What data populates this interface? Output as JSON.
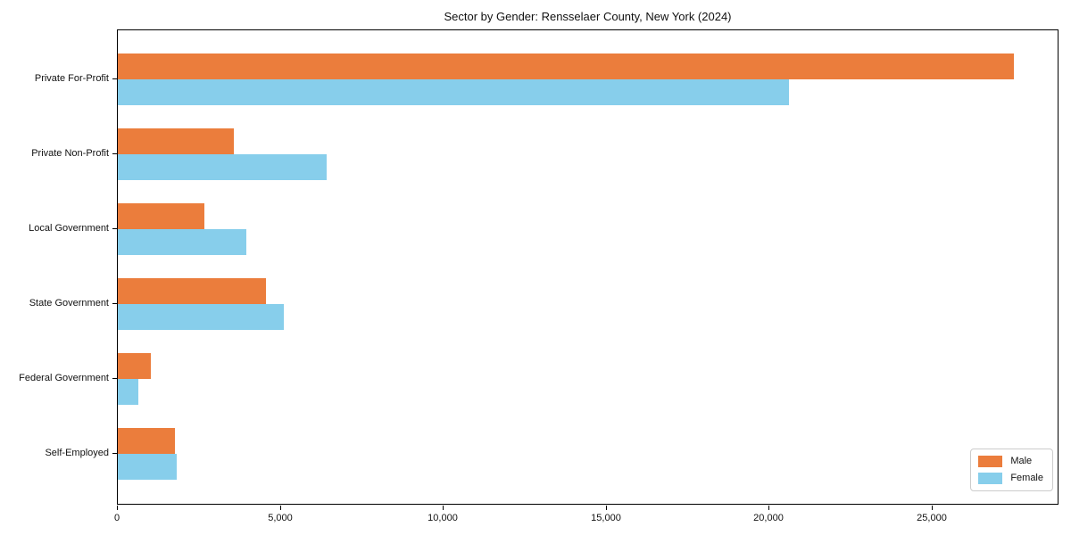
{
  "figure": {
    "background": "#ffffff"
  },
  "chart_data": {
    "type": "bar",
    "orientation": "horizontal",
    "title": "Sector by Gender: Rensselaer County, New York (2024)",
    "categories": [
      "Private For-Profit",
      "Private Non-Profit",
      "Local Government",
      "State Government",
      "Federal Government",
      "Self-Employed"
    ],
    "series": [
      {
        "name": "Male",
        "color": "#EB7D3C",
        "values": [
          27500,
          3550,
          2650,
          4550,
          1000,
          1750
        ]
      },
      {
        "name": "Female",
        "color": "#87CEEB",
        "values": [
          20600,
          6400,
          3950,
          5100,
          640,
          1800
        ]
      }
    ],
    "xlabel": "",
    "ylabel": "",
    "xlim": [
      0,
      28900
    ],
    "xticks": [
      {
        "value": 0,
        "label": "0"
      },
      {
        "value": 5000,
        "label": "5,000"
      },
      {
        "value": 10000,
        "label": "10,000"
      },
      {
        "value": 15000,
        "label": "15,000"
      },
      {
        "value": 20000,
        "label": "20,000"
      },
      {
        "value": 25000,
        "label": "25,000"
      }
    ],
    "grid": false,
    "legend": {
      "position": "lower right"
    }
  }
}
